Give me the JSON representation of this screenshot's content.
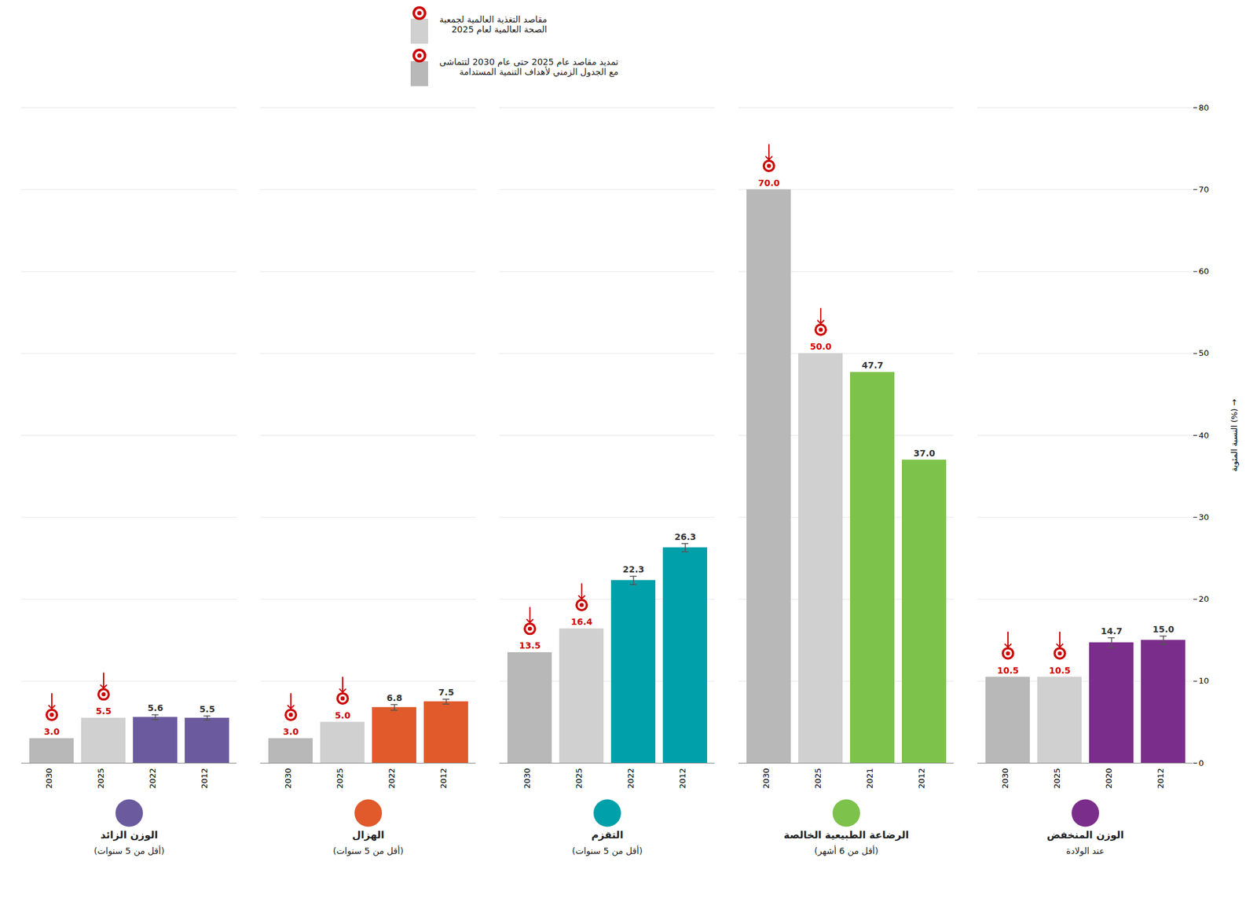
{
  "chart_data": {
    "type": "bar",
    "ylabel": "النسبة المئوية (%)",
    "ylim": [
      0,
      80
    ],
    "yticks": [
      0,
      10,
      20,
      30,
      40,
      50,
      60,
      70,
      80
    ],
    "grid": true,
    "data_labels": true,
    "target_color": "#cc0000",
    "legend_items": [
      {
        "label": "مقاصد التغذية العالمية لجمعية\nالصحة العالمية لعام 2025",
        "color": "#d0d0d0"
      },
      {
        "label": "تمديد مقاصد عام 2025 حتى عام 2030 لتتماشى\nمع الجدول الزمني لأهداف التنمية المستدامة",
        "color": "#b8b8b8"
      }
    ],
    "groups": [
      {
        "label": "الوزن الزائد",
        "sublabel": "(أقل من 5 سنوات)",
        "color": "#6b5b9e",
        "categories": [
          "2030",
          "2025",
          "2022",
          "2012"
        ],
        "values": [
          3.0,
          5.5,
          5.6,
          5.5
        ],
        "value_labels": [
          "3.0",
          "5.5",
          "5.6",
          "5.5"
        ],
        "colors": [
          "#b8b8b8",
          "#d0d0d0",
          "#6b5b9e",
          "#6b5b9e"
        ],
        "errors": [
          0,
          0,
          0.3,
          0.25
        ],
        "targets": [
          true,
          true,
          false,
          false
        ]
      },
      {
        "label": "الهزال",
        "sublabel": "(أقل من 5 سنوات)",
        "color": "#e05a2b",
        "categories": [
          "2030",
          "2025",
          "2022",
          "2012"
        ],
        "values": [
          3.0,
          5.0,
          6.8,
          7.5
        ],
        "value_labels": [
          "3.0",
          "5.0",
          "6.8",
          "7.5"
        ],
        "colors": [
          "#b8b8b8",
          "#d0d0d0",
          "#e05a2b",
          "#e05a2b"
        ],
        "errors": [
          0,
          0,
          0.35,
          0.3
        ],
        "targets": [
          true,
          true,
          false,
          false
        ]
      },
      {
        "label": "التقزم",
        "sublabel": "(أقل من 5 سنوات)",
        "color": "#00a0aa",
        "categories": [
          "2030",
          "2025",
          "2022",
          "2012"
        ],
        "values": [
          13.5,
          16.4,
          22.3,
          26.3
        ],
        "value_labels": [
          "13.5",
          "16.4",
          "22.3",
          "26.3"
        ],
        "colors": [
          "#b8b8b8",
          "#d0d0d0",
          "#00a0aa",
          "#00a0aa"
        ],
        "errors": [
          0,
          0,
          0.5,
          0.5
        ],
        "targets": [
          true,
          true,
          false,
          false
        ]
      },
      {
        "label": "الرضاعة الطبيعية الخالصة",
        "sublabel": "(أقل من 6 أشهر)",
        "color": "#7dc24b",
        "categories": [
          "2030",
          "2025",
          "2021",
          "2012"
        ],
        "values": [
          70.0,
          50.0,
          47.7,
          37.0
        ],
        "value_labels": [
          "70.0",
          "50.0",
          "47.7",
          "37.0"
        ],
        "colors": [
          "#b8b8b8",
          "#d0d0d0",
          "#7dc24b",
          "#7dc24b"
        ],
        "errors": [
          0,
          0,
          0,
          0
        ],
        "targets": [
          true,
          true,
          false,
          false
        ]
      },
      {
        "label": "الوزن المنخفض",
        "sublabel": "عند الولادة",
        "color": "#7b2d8b",
        "categories": [
          "2030",
          "2025",
          "2020",
          "2012"
        ],
        "values": [
          10.5,
          10.5,
          14.7,
          15.0
        ],
        "value_labels": [
          "10.5",
          "10.5",
          "14.7",
          "15.0"
        ],
        "colors": [
          "#b8b8b8",
          "#d0d0d0",
          "#7b2d8b",
          "#7b2d8b"
        ],
        "errors": [
          0,
          0,
          0.6,
          0.5
        ],
        "targets": [
          true,
          true,
          false,
          false
        ]
      }
    ]
  }
}
